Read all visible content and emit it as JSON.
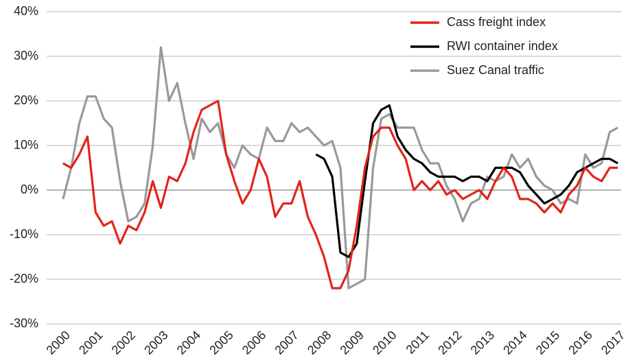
{
  "chart_data": {
    "type": "line",
    "x": [
      2000,
      2000.25,
      2000.5,
      2000.75,
      2001,
      2001.25,
      2001.5,
      2001.75,
      2002,
      2002.25,
      2002.5,
      2002.75,
      2003,
      2003.25,
      2003.5,
      2003.75,
      2004,
      2004.25,
      2004.5,
      2004.75,
      2005,
      2005.25,
      2005.5,
      2005.75,
      2006,
      2006.25,
      2006.5,
      2006.75,
      2007,
      2007.25,
      2007.5,
      2007.75,
      2008,
      2008.25,
      2008.5,
      2008.75,
      2009,
      2009.25,
      2009.5,
      2009.75,
      2010,
      2010.25,
      2010.5,
      2010.75,
      2011,
      2011.25,
      2011.5,
      2011.75,
      2012,
      2012.25,
      2012.5,
      2012.75,
      2013,
      2013.25,
      2013.5,
      2013.75,
      2014,
      2014.25,
      2014.5,
      2014.75,
      2015,
      2015.25,
      2015.5,
      2015.75,
      2016,
      2016.25,
      2016.5,
      2016.75,
      2017
    ],
    "series": [
      {
        "name": "Cass freight index",
        "color": "#e2231a",
        "values": [
          6,
          5,
          8,
          12,
          -5,
          -8,
          -7,
          -12,
          -8,
          -9,
          -5,
          2,
          -4,
          3,
          2,
          6,
          13,
          18,
          19,
          20,
          8,
          2,
          -3,
          0,
          7,
          3,
          -6,
          -3,
          -3,
          2,
          -6,
          -10,
          -15,
          -22,
          -22,
          -18,
          -8,
          5,
          12,
          14,
          14,
          10,
          7,
          0,
          2,
          0,
          2,
          -1,
          0,
          -2,
          -1,
          0,
          -2,
          2,
          5,
          3,
          -2,
          -2,
          -3,
          -5,
          -3,
          -5,
          -1,
          1,
          5,
          3,
          2,
          5,
          5
        ]
      },
      {
        "name": "RWI container index",
        "color": "#000000",
        "values": [
          null,
          null,
          null,
          null,
          null,
          null,
          null,
          null,
          null,
          null,
          null,
          null,
          null,
          null,
          null,
          null,
          null,
          null,
          null,
          null,
          null,
          null,
          null,
          null,
          null,
          null,
          null,
          null,
          null,
          null,
          null,
          8,
          7,
          3,
          -14,
          -15,
          -12,
          2,
          15,
          18,
          19,
          12,
          9,
          7,
          6,
          4,
          3,
          3,
          3,
          2,
          3,
          3,
          2,
          5,
          5,
          5,
          4,
          1,
          -1,
          -3,
          -2,
          -1,
          1,
          4,
          5,
          6,
          7,
          7,
          6
        ]
      },
      {
        "name": "Suez Canal traffic",
        "color": "#999999",
        "values": [
          -2,
          5,
          15,
          21,
          21,
          16,
          14,
          2,
          -7,
          -6,
          -3,
          10,
          32,
          20,
          24,
          15,
          7,
          16,
          13,
          15,
          8,
          5,
          10,
          8,
          7,
          14,
          11,
          11,
          15,
          13,
          14,
          12,
          10,
          11,
          5,
          -22,
          -21,
          -20,
          5,
          16,
          17,
          14,
          14,
          14,
          9,
          6,
          6,
          1,
          -2,
          -7,
          -3,
          -2,
          3,
          2,
          3,
          8,
          5,
          7,
          3,
          1,
          0,
          -3,
          -2,
          -3,
          8,
          5,
          6,
          13,
          14
        ]
      }
    ],
    "xlim": [
      1999.5,
      2017.1
    ],
    "xticks": [
      2000,
      2001,
      2002,
      2003,
      2004,
      2005,
      2006,
      2007,
      2008,
      2009,
      2010,
      2011,
      2012,
      2013,
      2014,
      2015,
      2016,
      2017
    ],
    "ylim": [
      -30,
      40
    ],
    "yticks": [
      {
        "value": -30,
        "label": "-30%"
      },
      {
        "value": -20,
        "label": "-20%"
      },
      {
        "value": -10,
        "label": "-10%"
      },
      {
        "value": 0,
        "label": "0%"
      },
      {
        "value": 10,
        "label": "10%"
      },
      {
        "value": 20,
        "label": "20%"
      },
      {
        "value": 30,
        "label": "30%"
      },
      {
        "value": 40,
        "label": "40%"
      }
    ],
    "grid": true,
    "legend": "upper right"
  }
}
